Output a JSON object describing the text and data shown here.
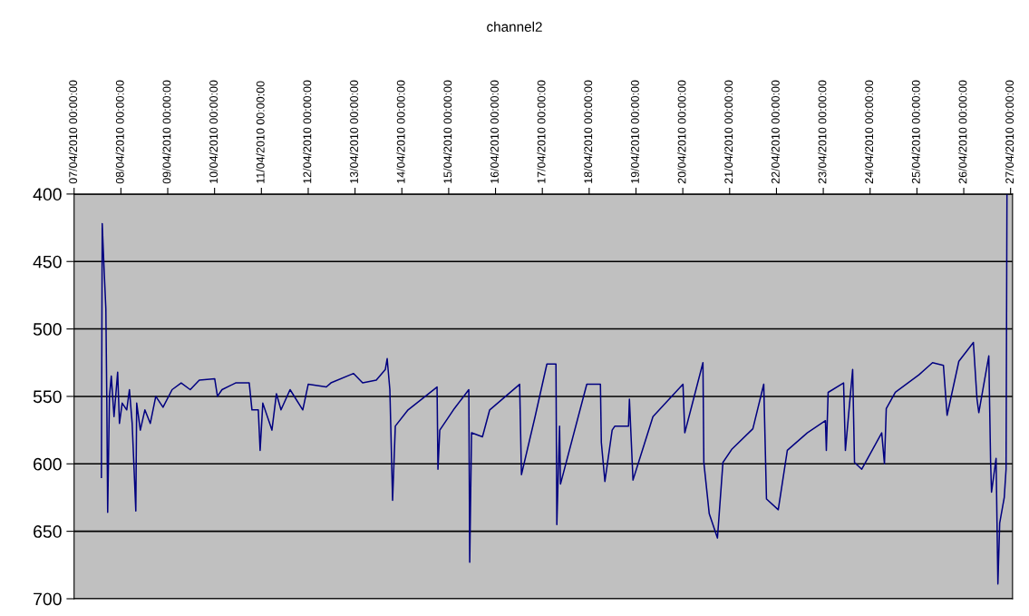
{
  "chart_data": {
    "type": "line",
    "title": "channel2",
    "x": [
      "2010-04-07T14:00",
      "2010-04-07T14:25",
      "2010-04-07T15:21",
      "2010-04-07T16:17",
      "2010-04-07T16:45",
      "2010-04-07T17:13",
      "2010-04-07T18:08",
      "2010-04-07T19:04",
      "2010-04-07T20:28",
      "2010-04-07T22:20",
      "2010-04-07T23:15",
      "2010-04-08T00:39",
      "2010-04-08T02:59",
      "2010-04-08T04:22",
      "2010-04-08T05:46",
      "2010-04-08T07:38",
      "2010-04-08T08:05",
      "2010-04-08T09:57",
      "2010-04-08T12:17",
      "2010-04-08T15:04",
      "2010-04-08T17:52",
      "2010-04-08T21:35",
      "2010-04-09T02:14",
      "2010-04-09T06:53",
      "2010-04-09T11:32",
      "2010-04-09T16:11",
      "2010-04-10T00:05",
      "2010-04-10T01:29",
      "2010-04-10T03:49",
      "2010-04-10T10:47",
      "2010-04-10T17:46",
      "2010-04-10T19:10",
      "2010-04-10T22:25",
      "2010-04-10T23:21",
      "2010-04-11T00:44",
      "2010-04-11T05:24",
      "2010-04-11T07:43",
      "2010-04-11T10:03",
      "2010-04-11T14:42",
      "2010-04-11T21:13",
      "2010-04-12T00:00",
      "2010-04-12T09:18",
      "2010-04-12T11:38",
      "2010-04-12T23:15",
      "2010-04-13T03:54",
      "2010-04-13T10:53",
      "2010-04-13T15:32",
      "2010-04-13T16:28",
      "2010-04-13T17:51",
      "2010-04-13T19:15",
      "2010-04-13T20:39",
      "2010-04-14T03:10",
      "2010-04-14T18:02",
      "2010-04-14T18:30",
      "2010-04-14T19:26",
      "2010-04-15T02:25",
      "2010-04-15T10:19",
      "2010-04-15T10:47",
      "2010-04-15T11:43",
      "2010-04-15T17:18",
      "2010-04-15T21:01",
      "2010-04-16T12:22",
      "2010-04-16T13:18",
      "2010-04-16T20:17",
      "2010-04-17T02:20",
      "2010-04-17T06:59",
      "2010-04-17T07:26",
      "2010-04-17T08:50",
      "2010-04-17T09:18",
      "2010-04-17T22:47",
      "2010-04-18T05:46",
      "2010-04-18T06:14",
      "2010-04-18T08:04",
      "2010-04-18T11:47",
      "2010-04-18T13:11",
      "2010-04-18T20:10",
      "2010-04-18T20:38",
      "2010-04-18T22:28",
      "2010-04-19T08:42",
      "2010-04-20T00:05",
      "2010-04-20T01:01",
      "2010-04-20T10:19",
      "2010-04-20T10:47",
      "2010-04-20T13:33",
      "2010-04-20T17:45",
      "2010-04-20T20:34",
      "2010-04-21T01:13",
      "2010-04-21T11:54",
      "2010-04-21T17:29",
      "2010-04-21T18:53",
      "2010-04-22T00:55",
      "2010-04-22T05:34",
      "2010-04-22T15:48",
      "2010-04-23T01:06",
      "2010-04-23T01:34",
      "2010-04-23T02:30",
      "2010-04-23T10:24",
      "2010-04-23T11:20",
      "2010-04-23T15:03",
      "2010-04-23T16:00",
      "2010-04-23T19:43",
      "2010-04-24T05:57",
      "2010-04-24T07:21",
      "2010-04-24T08:17",
      "2010-04-24T12:56",
      "2010-04-25T01:02",
      "2010-04-25T08:00",
      "2010-04-25T13:35",
      "2010-04-25T15:27",
      "2010-04-25T21:29",
      "2010-04-26T04:56",
      "2010-04-26T06:47",
      "2010-04-26T07:43",
      "2010-04-26T12:50",
      "2010-04-26T13:46",
      "2010-04-26T14:14",
      "2010-04-26T16:34",
      "2010-04-26T17:30",
      "2010-04-26T18:25",
      "2010-04-26T20:45",
      "2010-04-26T21:41",
      "2010-04-26T22:09"
    ],
    "series": [
      {
        "color": "#000080",
        "values": [
          610,
          422,
          455,
          485,
          550,
          636,
          550,
          535,
          565,
          532,
          570,
          555,
          560,
          545,
          570,
          635,
          555,
          575,
          560,
          570,
          550,
          558,
          545,
          540,
          545,
          538,
          537,
          550,
          545,
          540,
          540,
          560,
          560,
          590,
          555,
          575,
          548,
          560,
          545,
          560,
          541,
          543,
          540,
          533,
          540,
          538,
          530,
          522,
          545,
          627,
          572,
          560,
          543,
          604,
          575,
          560,
          545,
          673,
          577,
          580,
          560,
          541,
          608,
          565,
          526,
          526,
          645,
          572,
          615,
          541,
          541,
          584,
          613,
          575,
          572,
          572,
          552,
          612,
          565,
          541,
          577,
          525,
          599,
          637,
          655,
          599,
          589,
          574,
          541,
          626,
          634,
          590,
          577,
          568,
          590,
          547,
          540,
          590,
          530,
          599,
          604,
          577,
          600,
          559,
          547,
          534,
          525,
          527,
          564,
          524,
          510,
          552,
          562,
          520,
          599,
          621,
          596,
          689,
          644,
          625,
          604,
          400
        ]
      }
    ],
    "xlim": [
      "2010-04-07T00:00",
      "2010-04-27T01:00"
    ],
    "xticks": [
      {
        "value": "2010-04-07",
        "label": "07/04/2010 00:00:00"
      },
      {
        "value": "2010-04-08",
        "label": "08/04/2010 00:00:00"
      },
      {
        "value": "2010-04-09",
        "label": "09/04/2010 00:00:00"
      },
      {
        "value": "2010-04-10",
        "label": "10/04/2010 00:00:00"
      },
      {
        "value": "2010-04-11",
        "label": "11/04/2010 00:00:00"
      },
      {
        "value": "2010-04-12",
        "label": "12/04/2010 00:00:00"
      },
      {
        "value": "2010-04-13",
        "label": "13/04/2010 00:00:00"
      },
      {
        "value": "2010-04-14",
        "label": "14/04/2010 00:00:00"
      },
      {
        "value": "2010-04-15",
        "label": "15/04/2010 00:00:00"
      },
      {
        "value": "2010-04-16",
        "label": "16/04/2010 00:00:00"
      },
      {
        "value": "2010-04-17",
        "label": "17/04/2010 00:00:00"
      },
      {
        "value": "2010-04-18",
        "label": "18/04/2010 00:00:00"
      },
      {
        "value": "2010-04-19",
        "label": "19/04/2010 00:00:00"
      },
      {
        "value": "2010-04-20",
        "label": "20/04/2010 00:00:00"
      },
      {
        "value": "2010-04-21",
        "label": "21/04/2010 00:00:00"
      },
      {
        "value": "2010-04-22",
        "label": "22/04/2010 00:00:00"
      },
      {
        "value": "2010-04-23",
        "label": "23/04/2010 00:00:00"
      },
      {
        "value": "2010-04-24",
        "label": "24/04/2010 00:00:00"
      },
      {
        "value": "2010-04-25",
        "label": "25/04/2010 00:00:00"
      },
      {
        "value": "2010-04-26",
        "label": "26/04/2010 00:00:00"
      },
      {
        "value": "2010-04-27",
        "label": "27/04/2010 00:00:00"
      }
    ],
    "ylim": [
      700,
      400
    ],
    "yticks": [
      400,
      450,
      500,
      550,
      600,
      650,
      700
    ],
    "grid": "y",
    "marker": "none",
    "line_style": "solid"
  }
}
